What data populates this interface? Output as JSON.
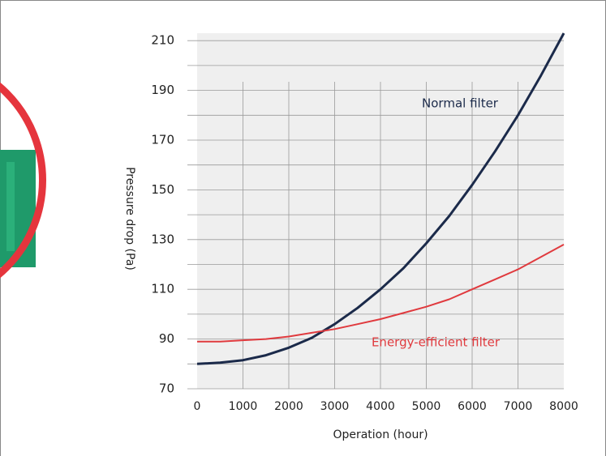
{
  "chart_data": {
    "type": "line",
    "x": [
      0,
      500,
      1000,
      1500,
      2000,
      2500,
      3000,
      3500,
      4000,
      4500,
      5000,
      5500,
      6000,
      6500,
      7000,
      7500,
      8000
    ],
    "series": [
      {
        "name": "Normal filter",
        "color": "#1b2a4a",
        "values": [
          80,
          80.5,
          81.5,
          83.5,
          86.5,
          90.5,
          96,
          102.5,
          110,
          118.5,
          128.5,
          139.5,
          152,
          165.5,
          180,
          196,
          213
        ]
      },
      {
        "name": "Energy-efficient filter",
        "color": "#e03a3e",
        "values": [
          89,
          89,
          89.5,
          90,
          91,
          92.5,
          94,
          96,
          98,
          100.5,
          103,
          106,
          110,
          114,
          118,
          123,
          128
        ]
      }
    ],
    "xlabel": "Operation (hour)",
    "ylabel": "Pressure drop (Pa)",
    "xlim": [
      0,
      8000
    ],
    "xticks": [
      0,
      1000,
      2000,
      3000,
      4000,
      5000,
      6000,
      7000,
      8000
    ],
    "ylim": [
      70,
      213
    ],
    "yticks": [
      70,
      90,
      110,
      130,
      150,
      170,
      190,
      210
    ],
    "yminorticks": [
      80,
      100,
      120,
      140,
      160,
      180,
      200
    ],
    "grid": true
  }
}
